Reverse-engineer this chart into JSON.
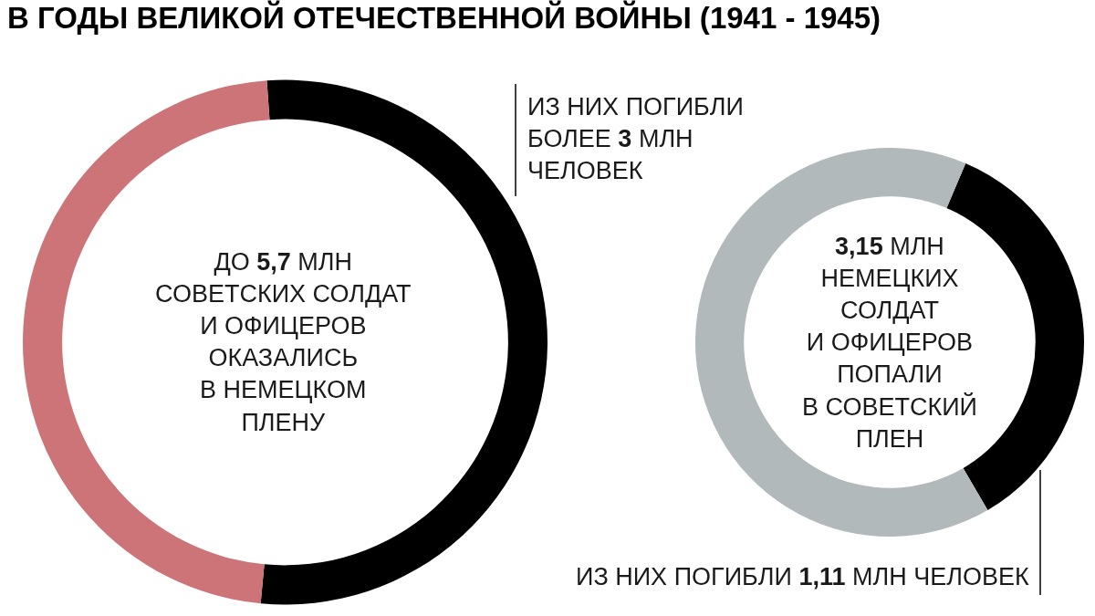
{
  "chart_data": [
    {
      "type": "donut",
      "title": "В ГОДЫ ВЕЛИКОЙ ОТЕЧЕСТВЕННОЙ ВОЙНЫ (1941 - 1945)",
      "categories": [
        null,
        null
      ],
      "values": [
        52.6,
        47.4
      ],
      "colors": [
        "#000000",
        "#cd7479"
      ],
      "legend": false,
      "annotations": [
        "ДО 5,7 МЛН\nСОВЕТСКИХ СОЛДАТ\nИ ОФИЦЕРОВ\nОКАЗАЛИСЬ\nВ НЕМЕЦКОМ\nПЛЕНУ",
        "ИЗ НИХ ПОГИБЛИ\nБОЛЕЕ 3 МЛН\nЧЕЛОВЕК"
      ]
    },
    {
      "type": "donut",
      "categories": [
        null,
        null
      ],
      "values": [
        35.2,
        64.8
      ],
      "colors": [
        "#000000",
        "#b2b9ba"
      ],
      "legend": false,
      "annotations": [
        "3,15 МЛН\nНЕМЕЦКИХ\nСОЛДАТ\nИ ОФИЦЕРОВ\nПОПАЛИ\nВ СОВЕТСКИЙ\nПЛЕН",
        "ИЗ НИХ ПОГИБЛИ 1,11 МЛН ЧЕЛОВЕК"
      ]
    }
  ]
}
